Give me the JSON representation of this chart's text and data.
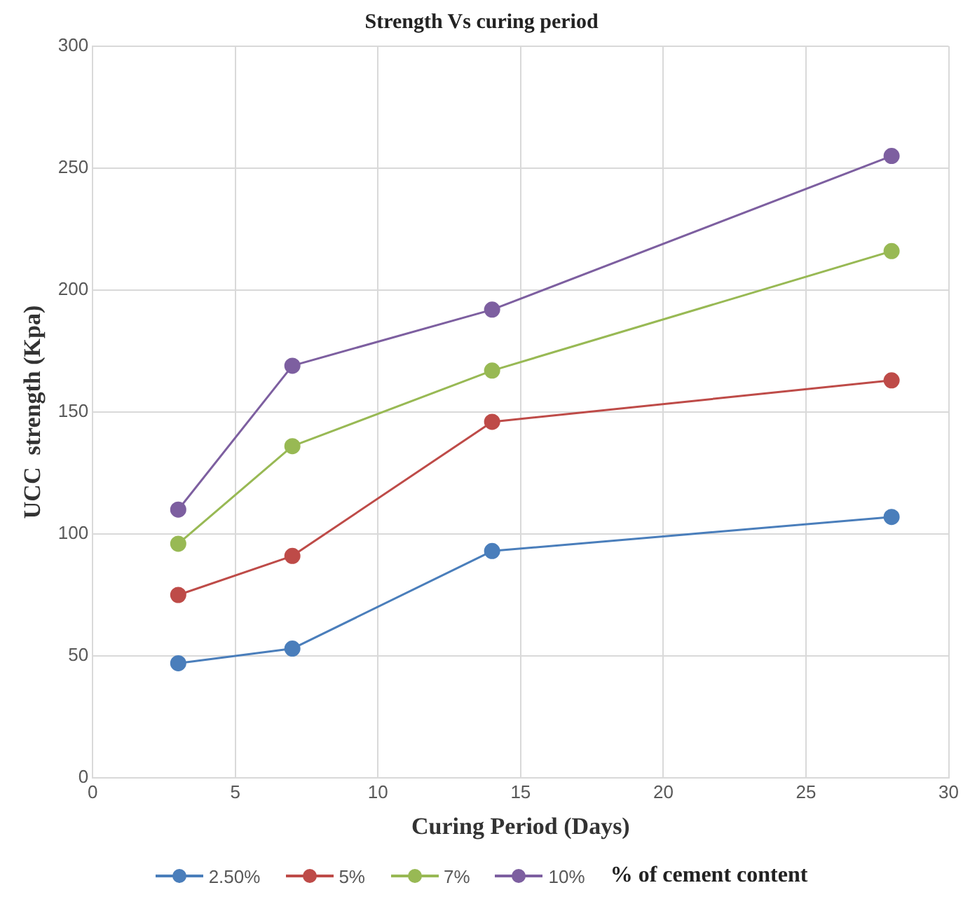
{
  "chart_data": {
    "type": "line",
    "title": "Strength Vs curing period",
    "xlabel": "Curing Period (Days)",
    "ylabel": "UCC  strength (Kpa)",
    "legend_title": "% of cement content",
    "x": [
      3,
      7,
      14,
      28
    ],
    "series": [
      {
        "name": "2.50%",
        "color": "#4a7ebb",
        "values": [
          47,
          53,
          93,
          107
        ]
      },
      {
        "name": "5%",
        "color": "#be4b48",
        "values": [
          75,
          91,
          146,
          163
        ]
      },
      {
        "name": "7%",
        "color": "#98b954",
        "values": [
          96,
          136,
          167,
          216
        ]
      },
      {
        "name": "10%",
        "color": "#7d5fa0",
        "values": [
          110,
          169,
          192,
          255
        ]
      }
    ],
    "xlim": [
      0,
      30
    ],
    "xticks": [
      0,
      5,
      10,
      15,
      20,
      25,
      30
    ],
    "ylim": [
      0,
      300
    ],
    "yticks": [
      0,
      50,
      100,
      150,
      200,
      250,
      300
    ],
    "grid": true,
    "legend": "bottom",
    "marker": "circle",
    "line_style": "solid"
  }
}
